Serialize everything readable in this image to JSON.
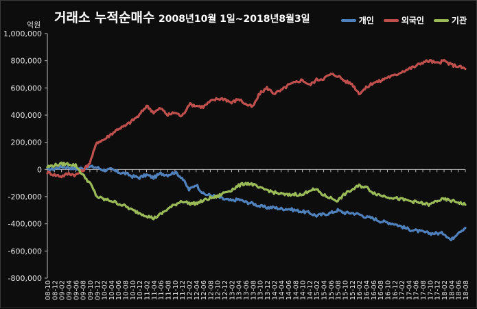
{
  "chart_data": {
    "type": "line",
    "title_main": "거래소 누적순매수",
    "title_period": "2008년10월 1일~2018년8월3일",
    "y_unit": "억원",
    "ylim": [
      -800000,
      1000000
    ],
    "y_ticks": [
      "1,000,000",
      "800,000",
      "600,000",
      "400,000",
      "200,000",
      "0",
      "-200,000",
      "-400,000",
      "-600,000",
      "-800,000"
    ],
    "x_categories": [
      "08-10",
      "08-12",
      "09-02",
      "09-04",
      "09-06",
      "09-08",
      "09-10",
      "09-12",
      "10-02",
      "10-04",
      "10-06",
      "10-08",
      "10-10",
      "10-12",
      "11-02",
      "11-04",
      "11-06",
      "11-08",
      "11-10",
      "11-12",
      "12-02",
      "12-04",
      "12-06",
      "12-08",
      "12-10",
      "12-12",
      "13-02",
      "13-04",
      "13-06",
      "13-08",
      "13-10",
      "13-12",
      "14-02",
      "14-04",
      "14-06",
      "14-08",
      "14-10",
      "14-12",
      "15-02",
      "15-04",
      "15-06",
      "15-08",
      "15-10",
      "15-12",
      "16-02",
      "16-04",
      "16-06",
      "16-08",
      "16-10",
      "16-12",
      "17-02",
      "17-04",
      "17-06",
      "17-08",
      "17-10",
      "17-12",
      "18-02",
      "18-04",
      "18-06",
      "18-08"
    ],
    "grid": false,
    "legend_position": "top-right",
    "series": [
      {
        "name": "개인",
        "color": "#4f81bd",
        "values": [
          0,
          5000,
          20000,
          15000,
          5000,
          10000,
          20000,
          15000,
          -5000,
          0,
          -20000,
          -30000,
          -50000,
          -60000,
          -40000,
          -60000,
          -30000,
          -40000,
          -20000,
          -60000,
          -150000,
          -110000,
          -180000,
          -190000,
          -200000,
          -220000,
          -230000,
          -220000,
          -240000,
          -250000,
          -270000,
          -280000,
          -280000,
          -290000,
          -290000,
          -300000,
          -310000,
          -320000,
          -340000,
          -330000,
          -320000,
          -300000,
          -320000,
          -320000,
          -330000,
          -350000,
          -360000,
          -380000,
          -390000,
          -400000,
          -420000,
          -440000,
          -450000,
          -460000,
          -470000,
          -470000,
          -470000,
          -520000,
          -460000,
          -430000
        ]
      },
      {
        "name": "외국인",
        "color": "#c0504d",
        "values": [
          -20000,
          -40000,
          -50000,
          -30000,
          -40000,
          -10000,
          50000,
          200000,
          220000,
          260000,
          300000,
          320000,
          360000,
          400000,
          470000,
          420000,
          450000,
          400000,
          420000,
          390000,
          480000,
          470000,
          460000,
          500000,
          520000,
          520000,
          490000,
          520000,
          480000,
          460000,
          560000,
          600000,
          560000,
          580000,
          620000,
          640000,
          660000,
          620000,
          660000,
          670000,
          700000,
          690000,
          650000,
          630000,
          560000,
          600000,
          640000,
          650000,
          680000,
          690000,
          720000,
          740000,
          760000,
          790000,
          800000,
          780000,
          800000,
          770000,
          760000,
          740000
        ]
      },
      {
        "name": "기관",
        "color": "#9bbb59",
        "values": [
          20000,
          30000,
          40000,
          40000,
          30000,
          -40000,
          -100000,
          -200000,
          -220000,
          -230000,
          -250000,
          -270000,
          -300000,
          -320000,
          -340000,
          -360000,
          -330000,
          -290000,
          -260000,
          -230000,
          -250000,
          -250000,
          -230000,
          -210000,
          -200000,
          -170000,
          -150000,
          -120000,
          -100000,
          -110000,
          -140000,
          -150000,
          -170000,
          -180000,
          -190000,
          -180000,
          -190000,
          -150000,
          -150000,
          -190000,
          -210000,
          -230000,
          -180000,
          -150000,
          -120000,
          -130000,
          -170000,
          -190000,
          -200000,
          -210000,
          -220000,
          -230000,
          -240000,
          -250000,
          -260000,
          -230000,
          -220000,
          -230000,
          -240000,
          -260000
        ]
      }
    ]
  }
}
